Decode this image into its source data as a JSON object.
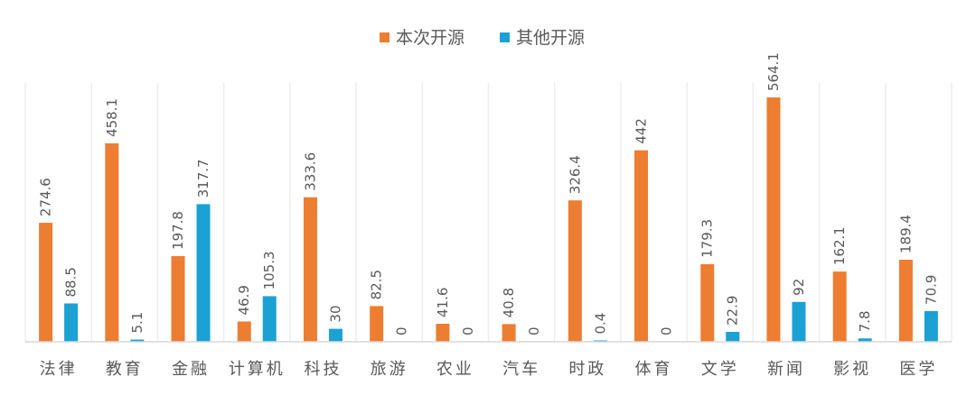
{
  "chart_data": {
    "type": "bar",
    "categories": [
      "法律",
      "教育",
      "金融",
      "计算机",
      "科技",
      "旅游",
      "农业",
      "汽车",
      "时政",
      "体育",
      "文学",
      "新闻",
      "影视",
      "医学"
    ],
    "series": [
      {
        "name": "本次开源",
        "color": "#ED7D31",
        "values": [
          274.6,
          458.1,
          197.8,
          46.9,
          333.6,
          82.5,
          41.6,
          40.8,
          326.4,
          442,
          179.3,
          564.1,
          162.1,
          189.4
        ]
      },
      {
        "name": "其他开源",
        "color": "#1BA1D3",
        "values": [
          88.5,
          5.1,
          317.7,
          105.3,
          30,
          0,
          0,
          0,
          0.4,
          0,
          22.9,
          92,
          7.8,
          70.9
        ]
      }
    ],
    "ylim": [
      0,
      600
    ],
    "legend_position": "top-center",
    "data_labels": "vertical-above-bars",
    "grid": "vertical-separators"
  }
}
